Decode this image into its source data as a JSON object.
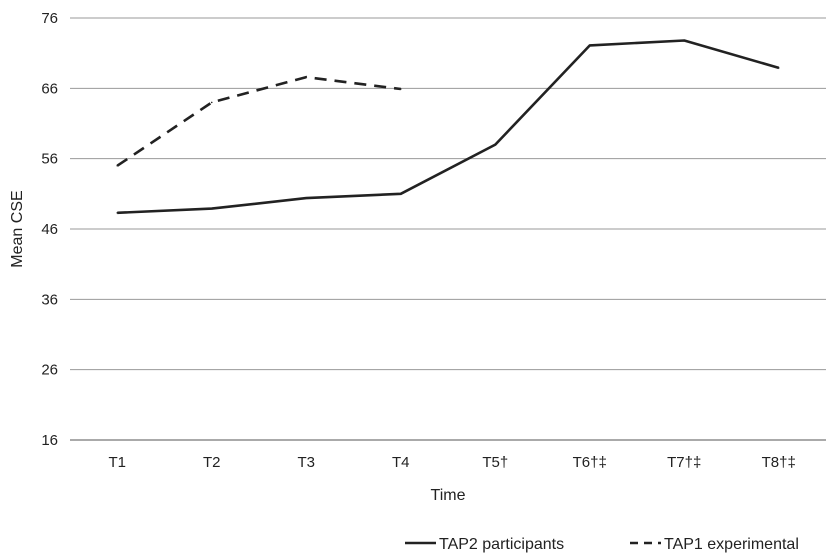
{
  "chart_data": {
    "type": "line",
    "title": "",
    "xlabel": "Time",
    "ylabel": "Mean CSE",
    "categories": [
      "T1",
      "T2",
      "T3",
      "T4",
      "T5†",
      "T6†‡",
      "T7†‡",
      "T8†‡"
    ],
    "yticks": [
      16,
      26,
      36,
      46,
      56,
      66,
      76
    ],
    "ylim": [
      16,
      76
    ],
    "grid": "horizontal",
    "legend_position": "bottom-right",
    "series": [
      {
        "name": "TAP2 participants",
        "style": "solid",
        "color": "#222222",
        "values": [
          48.3,
          48.9,
          50.4,
          51.0,
          58.0,
          72.1,
          72.8,
          68.9
        ]
      },
      {
        "name": "TAP1 experimental",
        "style": "dashed",
        "color": "#222222",
        "values": [
          55.0,
          64.0,
          67.6,
          65.9,
          null,
          null,
          null,
          null
        ]
      }
    ]
  }
}
